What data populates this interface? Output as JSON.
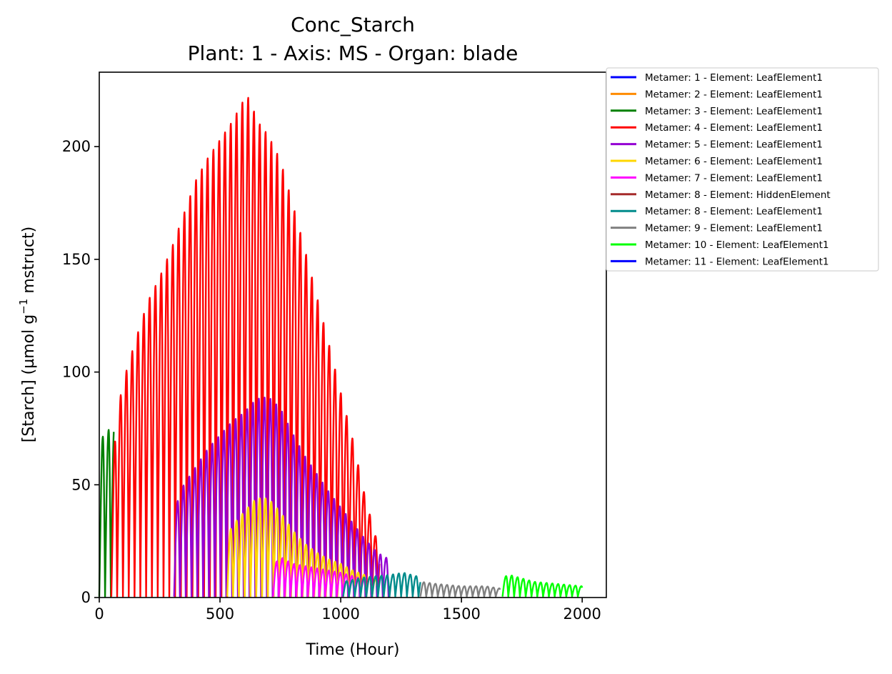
{
  "chart_data": {
    "type": "line",
    "title": "Conc_Starch",
    "subtitle": "Plant: 1 - Axis: MS - Organ: blade",
    "xlabel": "Time (Hour)",
    "ylabel_main": "[Starch] (µmol g",
    "ylabel_sup": "−1",
    "ylabel_tail": " mstruct)",
    "xlim": [
      0,
      2100
    ],
    "ylim": [
      0,
      233
    ],
    "xticks": [
      0,
      500,
      1000,
      1500,
      2000
    ],
    "yticks": [
      0,
      50,
      100,
      150,
      200
    ],
    "grid": false,
    "legend_position": "outside-right",
    "series": [
      {
        "name": "Metamer: 1 - Element: LeafElement1",
        "color": "#0000ff",
        "start": 0,
        "end": 0,
        "peaks": []
      },
      {
        "name": "Metamer: 2 - Element: LeafElement1",
        "color": "#ff8c00",
        "start": 0,
        "end": 0,
        "peaks": []
      },
      {
        "name": "Metamer: 3 - Element: LeafElement1",
        "color": "#008000",
        "start": 0,
        "end": 60,
        "peaks": [
          [
            0,
            60
          ],
          [
            12,
            71
          ],
          [
            36,
            74
          ],
          [
            60,
            77
          ]
        ]
      },
      {
        "name": "Metamer: 4 - Element: LeafElement1",
        "color": "#ff0000",
        "start": 50,
        "end": 1160,
        "peaks": [
          [
            50,
            50
          ],
          [
            75,
            82
          ],
          [
            100,
            96
          ],
          [
            150,
            114
          ],
          [
            200,
            131
          ],
          [
            250,
            142
          ],
          [
            300,
            155
          ],
          [
            350,
            170
          ],
          [
            400,
            185
          ],
          [
            450,
            195
          ],
          [
            500,
            203
          ],
          [
            550,
            211
          ],
          [
            600,
            221
          ],
          [
            625,
            222
          ],
          [
            650,
            212
          ],
          [
            700,
            205
          ],
          [
            750,
            194
          ],
          [
            800,
            175
          ],
          [
            850,
            155
          ],
          [
            900,
            134
          ],
          [
            950,
            113
          ],
          [
            1000,
            91
          ],
          [
            1050,
            70
          ],
          [
            1100,
            45
          ],
          [
            1150,
            25
          ]
        ]
      },
      {
        "name": "Metamer: 5 - Element: LeafElement1",
        "color": "#9400d3",
        "start": 310,
        "end": 1200,
        "peaks": [
          [
            315,
            40
          ],
          [
            350,
            50
          ],
          [
            400,
            58
          ],
          [
            450,
            66
          ],
          [
            500,
            72
          ],
          [
            550,
            78
          ],
          [
            600,
            82
          ],
          [
            650,
            88
          ],
          [
            700,
            89
          ],
          [
            750,
            84
          ],
          [
            800,
            73
          ],
          [
            850,
            63
          ],
          [
            900,
            55
          ],
          [
            950,
            47
          ],
          [
            1000,
            40
          ],
          [
            1050,
            33
          ],
          [
            1100,
            26
          ],
          [
            1150,
            20
          ],
          [
            1200,
            17
          ]
        ]
      },
      {
        "name": "Metamer: 6 - Element: LeafElement1",
        "color": "#ffd700",
        "start": 530,
        "end": 1150,
        "peaks": [
          [
            530,
            28
          ],
          [
            560,
            33
          ],
          [
            600,
            38
          ],
          [
            650,
            44
          ],
          [
            700,
            44
          ],
          [
            750,
            38
          ],
          [
            800,
            30
          ],
          [
            850,
            24
          ],
          [
            900,
            20
          ],
          [
            950,
            17
          ],
          [
            1000,
            15
          ],
          [
            1050,
            12
          ],
          [
            1100,
            10
          ],
          [
            1150,
            8
          ]
        ]
      },
      {
        "name": "Metamer: 7 - Element: LeafElement1",
        "color": "#ff00ff",
        "start": 720,
        "end": 1100,
        "peaks": [
          [
            720,
            14
          ],
          [
            750,
            18
          ],
          [
            800,
            15
          ],
          [
            900,
            13
          ],
          [
            1000,
            11
          ],
          [
            1100,
            8
          ]
        ]
      },
      {
        "name": "Metamer: 8 - Element: HiddenElement",
        "color": "#a52a2a",
        "start": 0,
        "end": 0,
        "peaks": []
      },
      {
        "name": "Metamer: 8 - Element: LeafElement1",
        "color": "#008b8b",
        "start": 1010,
        "end": 1330,
        "peaks": [
          [
            1010,
            7
          ],
          [
            1100,
            9
          ],
          [
            1200,
            10
          ],
          [
            1260,
            11
          ],
          [
            1330,
            9
          ]
        ]
      },
      {
        "name": "Metamer: 9 - Element: LeafElement1",
        "color": "#808080",
        "start": 1330,
        "end": 1660,
        "peaks": [
          [
            1330,
            7
          ],
          [
            1400,
            6
          ],
          [
            1500,
            5
          ],
          [
            1600,
            5
          ],
          [
            1660,
            4
          ]
        ]
      },
      {
        "name": "Metamer: 10 - Element: LeafElement1",
        "color": "#00ff00",
        "start": 1670,
        "end": 2000,
        "peaks": [
          [
            1670,
            9
          ],
          [
            1700,
            10
          ],
          [
            1800,
            7
          ],
          [
            1900,
            6
          ],
          [
            2000,
            5
          ]
        ]
      },
      {
        "name": "Metamer: 11 - Element: LeafElement1",
        "color": "#0000ff",
        "start": 0,
        "end": 0,
        "peaks": []
      }
    ]
  }
}
